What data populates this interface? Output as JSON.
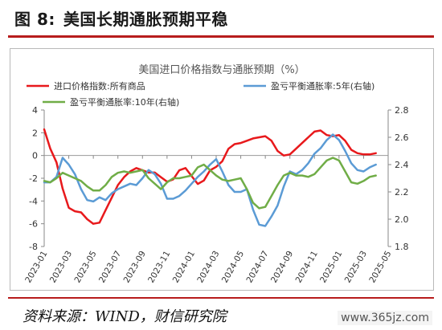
{
  "figure": {
    "title_num": "图 8:",
    "title": "美国长期通胀预期平稳",
    "source": "资料来源：WIND，财信研究院",
    "watermark": "www.365jz.com"
  },
  "colors": {
    "import_price": "#e8191c",
    "infl_5y": "#5b9bd5",
    "infl_10y": "#70ad47",
    "rule": "#b71c1c"
  },
  "chart_data": {
    "type": "line",
    "title": "美国进口价格指数与通胀预期（%）",
    "legend": [
      "进口价格指数:所有商品",
      "盈亏平衡通胀率:5年(右轴)",
      "盈亏平衡通胀率:10年(右轴)"
    ],
    "x_ticks": [
      "2023-01",
      "2023-03",
      "2023-05",
      "2023-07",
      "2023-09",
      "2023-11",
      "2024-01",
      "2024-03",
      "2024-05",
      "2024-07",
      "2024-09",
      "2024-11",
      "2025-01",
      "2025-03",
      "2025-05"
    ],
    "y_left": {
      "min": -8,
      "max": 4,
      "ticks": [
        4,
        2,
        0,
        -2,
        -4,
        -6,
        -8
      ]
    },
    "y_right": {
      "min": 1.8,
      "max": 2.8,
      "ticks": [
        2.8,
        2.6,
        2.4,
        2.2,
        2.0,
        1.8
      ]
    },
    "series": [
      {
        "name": "进口价格指数:所有商品",
        "axis": "left",
        "points": [
          [
            0,
            2.3
          ],
          [
            0.5,
            0.6
          ],
          [
            1,
            -0.6
          ],
          [
            1.5,
            -2.9
          ],
          [
            2,
            -4.6
          ],
          [
            2.5,
            -4.9
          ],
          [
            3,
            -5.0
          ],
          [
            3.5,
            -5.6
          ],
          [
            4,
            -6.0
          ],
          [
            4.5,
            -5.9
          ],
          [
            5,
            -4.8
          ],
          [
            5.5,
            -3.7
          ],
          [
            6,
            -2.6
          ],
          [
            6.5,
            -1.9
          ],
          [
            7,
            -1.4
          ],
          [
            7.5,
            -1.1
          ],
          [
            8,
            -1.3
          ],
          [
            8.5,
            -1.5
          ],
          [
            9,
            -1.5
          ],
          [
            9.5,
            -1.9
          ],
          [
            10,
            -2.3
          ],
          [
            10.5,
            -2.1
          ],
          [
            11,
            -1.3
          ],
          [
            11.5,
            -1.1
          ],
          [
            12,
            -1.8
          ],
          [
            12.5,
            -2.5
          ],
          [
            13,
            -2.2
          ],
          [
            13.5,
            -1.3
          ],
          [
            14,
            -1.0
          ],
          [
            14.5,
            -0.5
          ],
          [
            15,
            0.6
          ],
          [
            15.5,
            1.0
          ],
          [
            16,
            1.1
          ],
          [
            16.5,
            1.3
          ],
          [
            17,
            1.5
          ],
          [
            17.5,
            1.6
          ],
          [
            18,
            1.7
          ],
          [
            18.5,
            1.3
          ],
          [
            19,
            0.4
          ],
          [
            19.5,
            0.0
          ],
          [
            20,
            0.1
          ],
          [
            20.5,
            0.6
          ],
          [
            21,
            1.1
          ],
          [
            21.5,
            1.6
          ],
          [
            22,
            2.1
          ],
          [
            22.5,
            2.2
          ],
          [
            23,
            1.8
          ],
          [
            23.5,
            1.7
          ],
          [
            24,
            1.8
          ],
          [
            24.5,
            1.3
          ],
          [
            25,
            0.5
          ],
          [
            25.5,
            0.2
          ],
          [
            26,
            0.1
          ],
          [
            26.5,
            0.1
          ],
          [
            27,
            0.2
          ]
        ]
      },
      {
        "name": "盈亏平衡通胀率:5年(右轴)",
        "axis": "right",
        "points": [
          [
            0,
            2.27
          ],
          [
            0.5,
            2.27
          ],
          [
            1,
            2.31
          ],
          [
            1.5,
            2.45
          ],
          [
            2,
            2.4
          ],
          [
            2.5,
            2.33
          ],
          [
            3,
            2.22
          ],
          [
            3.5,
            2.14
          ],
          [
            4,
            2.13
          ],
          [
            4.5,
            2.16
          ],
          [
            5,
            2.14
          ],
          [
            5.5,
            2.19
          ],
          [
            6,
            2.22
          ],
          [
            6.5,
            2.24
          ],
          [
            7,
            2.26
          ],
          [
            7.5,
            2.25
          ],
          [
            8,
            2.3
          ],
          [
            8.5,
            2.36
          ],
          [
            9,
            2.33
          ],
          [
            9.5,
            2.26
          ],
          [
            10,
            2.15
          ],
          [
            10.5,
            2.15
          ],
          [
            11,
            2.17
          ],
          [
            11.5,
            2.21
          ],
          [
            12,
            2.26
          ],
          [
            12.5,
            2.31
          ],
          [
            13,
            2.35
          ],
          [
            13.5,
            2.4
          ],
          [
            14,
            2.44
          ],
          [
            14.5,
            2.35
          ],
          [
            15,
            2.25
          ],
          [
            15.5,
            2.2
          ],
          [
            16,
            2.2
          ],
          [
            16.5,
            2.22
          ],
          [
            17,
            2.07
          ],
          [
            17.5,
            1.96
          ],
          [
            18,
            1.95
          ],
          [
            18.5,
            2.02
          ],
          [
            19,
            2.1
          ],
          [
            19.5,
            2.24
          ],
          [
            20,
            2.35
          ],
          [
            20.5,
            2.33
          ],
          [
            21,
            2.36
          ],
          [
            21.5,
            2.41
          ],
          [
            22,
            2.48
          ],
          [
            22.5,
            2.52
          ],
          [
            23,
            2.58
          ],
          [
            23.5,
            2.62
          ],
          [
            24,
            2.58
          ],
          [
            24.5,
            2.5
          ],
          [
            25,
            2.41
          ],
          [
            25.5,
            2.36
          ],
          [
            26,
            2.35
          ],
          [
            26.5,
            2.38
          ],
          [
            27,
            2.4
          ]
        ]
      },
      {
        "name": "盈亏平衡通胀率:10年(右轴)",
        "axis": "right",
        "points": [
          [
            0,
            2.28
          ],
          [
            0.5,
            2.27
          ],
          [
            1,
            2.3
          ],
          [
            1.5,
            2.34
          ],
          [
            2,
            2.32
          ],
          [
            2.5,
            2.3
          ],
          [
            3,
            2.28
          ],
          [
            3.5,
            2.24
          ],
          [
            4,
            2.21
          ],
          [
            4.5,
            2.21
          ],
          [
            5,
            2.25
          ],
          [
            5.5,
            2.31
          ],
          [
            6,
            2.34
          ],
          [
            6.5,
            2.35
          ],
          [
            7,
            2.34
          ],
          [
            7.5,
            2.35
          ],
          [
            8,
            2.36
          ],
          [
            8.5,
            2.3
          ],
          [
            9,
            2.26
          ],
          [
            9.5,
            2.22
          ],
          [
            10,
            2.27
          ],
          [
            10.5,
            2.3
          ],
          [
            11,
            2.3
          ],
          [
            11.5,
            2.31
          ],
          [
            12,
            2.32
          ],
          [
            12.5,
            2.38
          ],
          [
            13,
            2.4
          ],
          [
            13.5,
            2.36
          ],
          [
            14,
            2.32
          ],
          [
            14.5,
            2.29
          ],
          [
            15,
            2.28
          ],
          [
            15.5,
            2.29
          ],
          [
            16,
            2.3
          ],
          [
            16.5,
            2.22
          ],
          [
            17,
            2.12
          ],
          [
            17.5,
            2.08
          ],
          [
            18,
            2.09
          ],
          [
            18.5,
            2.17
          ],
          [
            19,
            2.25
          ],
          [
            19.5,
            2.32
          ],
          [
            20,
            2.34
          ],
          [
            20.5,
            2.32
          ],
          [
            21,
            2.32
          ],
          [
            21.5,
            2.31
          ],
          [
            22,
            2.33
          ],
          [
            22.5,
            2.38
          ],
          [
            23,
            2.43
          ],
          [
            23.5,
            2.45
          ],
          [
            24,
            2.43
          ],
          [
            24.5,
            2.35
          ],
          [
            25,
            2.27
          ],
          [
            25.5,
            2.26
          ],
          [
            26,
            2.28
          ],
          [
            26.5,
            2.31
          ],
          [
            27,
            2.32
          ]
        ]
      }
    ]
  }
}
